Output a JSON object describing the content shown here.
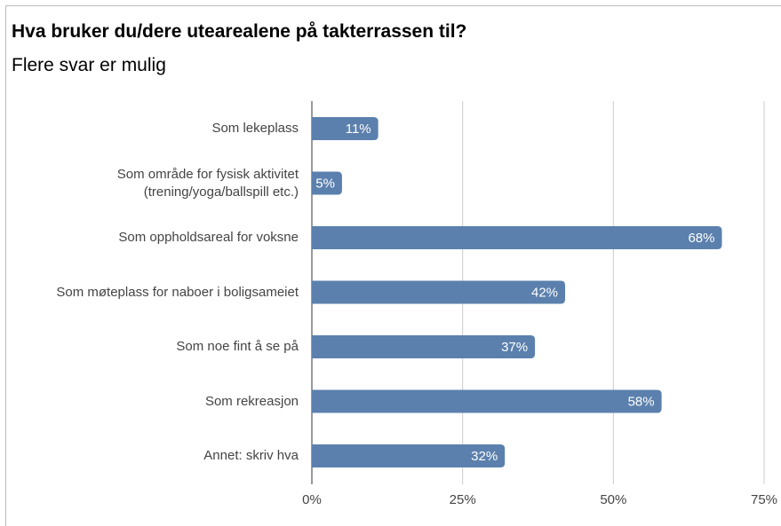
{
  "chart_data": {
    "type": "bar",
    "orientation": "horizontal",
    "title": "Hva bruker du/dere utearealene på takterrassen til?",
    "subtitle": "Flere svar er mulig",
    "categories": [
      "Som lekeplass",
      "Som område for fysisk aktivitet\n(trening/yoga/ballspill etc.)",
      "Som oppholdsareal for voksne",
      "Som møteplass for naboer i boligsameiet",
      "Som noe fint å se på",
      "Som rekreasjon",
      "Annet: skriv hva"
    ],
    "values": [
      11,
      5,
      68,
      42,
      37,
      58,
      32
    ],
    "value_labels": [
      "11%",
      "5%",
      "68%",
      "42%",
      "37%",
      "58%",
      "32%"
    ],
    "color": "#5b80ad",
    "xlim": [
      0,
      75
    ],
    "xticks": [
      {
        "value": 0,
        "label": "0%"
      },
      {
        "value": 25,
        "label": "25%"
      },
      {
        "value": 50,
        "label": "50%"
      },
      {
        "value": 75,
        "label": "75%"
      }
    ],
    "grid": true
  }
}
